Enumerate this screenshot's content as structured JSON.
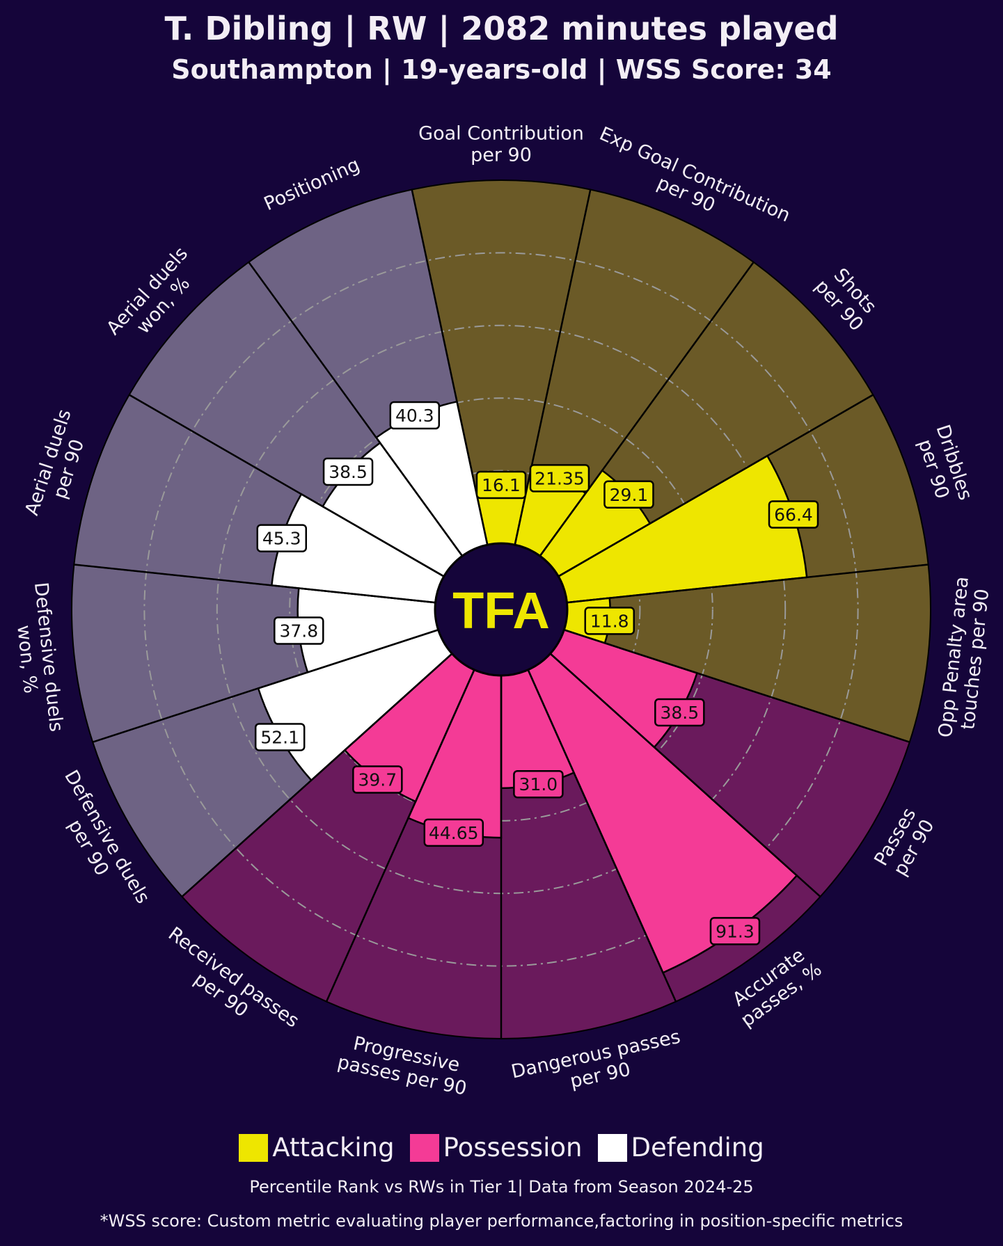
{
  "header": {
    "title": "T. Dibling | RW | 2082 minutes played",
    "subtitle": "Southampton | 19-years-old | WSS Score: 34"
  },
  "logo_text": "TFA",
  "footer": {
    "note1": "Percentile Rank vs RWs in Tier 1| Data from Season 2024-25",
    "note2": "*WSS score: Custom metric evaluating player performance,factoring in position-specific metrics"
  },
  "colors": {
    "background": "#15053a",
    "attacking_fill": "#eee600",
    "attacking_bg": "#6b5a27",
    "possession_fill": "#f43b96",
    "possession_bg": "#6a1a5c",
    "defending_fill": "#ffffff",
    "defending_bg": "#6e6384"
  },
  "chart_data": {
    "type": "pizza",
    "range": [
      0,
      100
    ],
    "gridlines": [
      20,
      40,
      60,
      80
    ],
    "legend": [
      {
        "name": "Attacking",
        "group": "attacking"
      },
      {
        "name": "Possession",
        "group": "possession"
      },
      {
        "name": "Defending",
        "group": "defending"
      }
    ],
    "legend_position": "bottom",
    "categories": [
      {
        "label": [
          "Goal Contribution",
          "per 90"
        ],
        "value": "16.1",
        "group": "attacking"
      },
      {
        "label": [
          "Exp Goal Contribution",
          "per 90"
        ],
        "value": "21.35",
        "group": "attacking"
      },
      {
        "label": [
          "Shots",
          "per 90"
        ],
        "value": "29.1",
        "group": "attacking"
      },
      {
        "label": [
          "Dribbles",
          "per 90"
        ],
        "value": "66.4",
        "group": "attacking"
      },
      {
        "label": [
          "Opp Penalty area",
          "touches per 90"
        ],
        "value": "11.8",
        "group": "attacking"
      },
      {
        "label": [
          "Passes",
          "per 90"
        ],
        "value": "38.5",
        "group": "possession"
      },
      {
        "label": [
          "Accurate",
          "passes, %"
        ],
        "value": "91.3",
        "group": "possession"
      },
      {
        "label": [
          "Dangerous passes",
          "per 90"
        ],
        "value": "31.0",
        "group": "possession"
      },
      {
        "label": [
          "Progressive",
          "passes per 90"
        ],
        "value": "44.65",
        "group": "possession"
      },
      {
        "label": [
          "Received passes",
          "per 90"
        ],
        "value": "39.7",
        "group": "possession"
      },
      {
        "label": [
          "Defensive duels",
          "per 90"
        ],
        "value": "52.1",
        "group": "defending"
      },
      {
        "label": [
          "Defensive duels",
          "won, %"
        ],
        "value": "37.8",
        "group": "defending"
      },
      {
        "label": [
          "Aerial duels",
          "per 90"
        ],
        "value": "45.3",
        "group": "defending"
      },
      {
        "label": [
          "Aerial duels",
          "won, %"
        ],
        "value": "38.5",
        "group": "defending"
      },
      {
        "label": [
          "Positioning"
        ],
        "value": "40.3",
        "group": "defending"
      }
    ]
  }
}
